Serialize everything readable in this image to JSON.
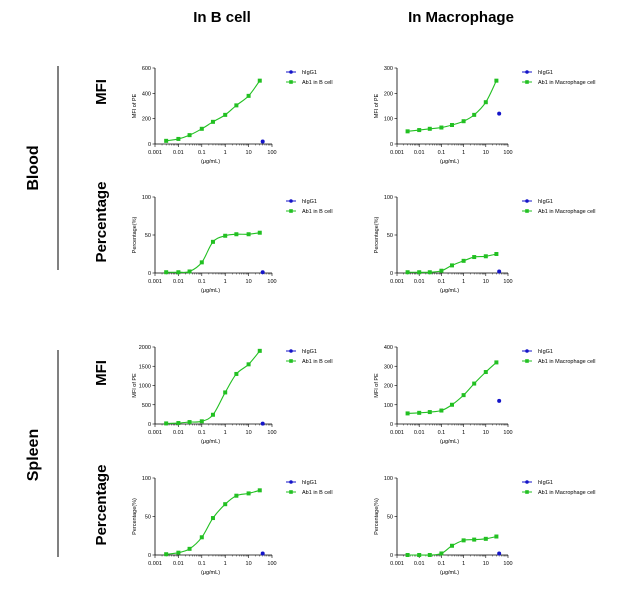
{
  "columns": [
    "In B cell",
    "In Macrophage"
  ],
  "row_groups": [
    "Blood",
    "Spleen"
  ],
  "row_types": [
    "MFI",
    "Percentage"
  ],
  "colors": {
    "igg": "#1414c8",
    "ab": "#22c022",
    "axis": "#000000",
    "line": "#000000"
  },
  "chart_data": [
    {
      "type": "scatter",
      "panel": "blood-mfi-bcell",
      "xlabel": "(μg/mL)",
      "ylabel": "MFI of PE",
      "xscale": "log",
      "xlim": [
        0.001,
        100
      ],
      "xticks": [
        0.001,
        0.01,
        0.1,
        1,
        10,
        100
      ],
      "xtick_labels": [
        "0.001",
        "0.01",
        "0.1",
        "1",
        "10",
        "100"
      ],
      "ylim": [
        0,
        600
      ],
      "yticks": [
        0,
        200,
        400,
        600
      ],
      "ytick_labels": [
        "0",
        "200",
        "400",
        "600"
      ],
      "series": [
        {
          "name": "hIgG1",
          "color": "#1414c8",
          "x": [
            40
          ],
          "y": [
            20
          ]
        },
        {
          "name": "Ab1 in B cell",
          "color": "#22c022",
          "fit": true,
          "x": [
            0.003,
            0.01,
            0.03,
            0.1,
            0.3,
            1,
            3,
            10,
            30
          ],
          "y": [
            25,
            40,
            70,
            120,
            175,
            230,
            305,
            380,
            500
          ]
        }
      ]
    },
    {
      "type": "scatter",
      "panel": "blood-mfi-macrophage",
      "xlabel": "(μg/mL)",
      "ylabel": "MFI of PE",
      "xscale": "log",
      "xlim": [
        0.001,
        100
      ],
      "xticks": [
        0.001,
        0.01,
        0.1,
        1,
        10,
        100
      ],
      "xtick_labels": [
        "0.001",
        "0.01",
        "0.1",
        "1",
        "10",
        "100"
      ],
      "ylim": [
        0,
        300
      ],
      "yticks": [
        0,
        100,
        200,
        300
      ],
      "ytick_labels": [
        "0",
        "100",
        "200",
        "300"
      ],
      "series": [
        {
          "name": "hIgG1",
          "color": "#1414c8",
          "x": [
            40
          ],
          "y": [
            120
          ]
        },
        {
          "name": "Ab1 in Macrophage cell",
          "color": "#22c022",
          "fit": true,
          "x": [
            0.003,
            0.01,
            0.03,
            0.1,
            0.3,
            1,
            3,
            10,
            30
          ],
          "y": [
            50,
            55,
            60,
            65,
            75,
            90,
            115,
            165,
            250
          ]
        }
      ]
    },
    {
      "type": "scatter",
      "panel": "blood-percentage-bcell",
      "xlabel": "(μg/mL)",
      "ylabel": "Percentage(%)",
      "xscale": "log",
      "xlim": [
        0.001,
        100
      ],
      "xticks": [
        0.001,
        0.01,
        0.1,
        1,
        10,
        100
      ],
      "xtick_labels": [
        "0.001",
        "0.01",
        "0.1",
        "1",
        "10",
        "100"
      ],
      "ylim": [
        0,
        100
      ],
      "yticks": [
        0,
        50,
        100
      ],
      "ytick_labels": [
        "0",
        "50",
        "100"
      ],
      "series": [
        {
          "name": "hIgG1",
          "color": "#1414c8",
          "x": [
            40
          ],
          "y": [
            1
          ]
        },
        {
          "name": "Ab1 in B cell",
          "color": "#22c022",
          "fit": true,
          "x": [
            0.003,
            0.01,
            0.03,
            0.1,
            0.3,
            1,
            3,
            10,
            30
          ],
          "y": [
            1,
            1,
            2,
            14,
            41,
            49,
            51,
            51,
            53
          ]
        }
      ]
    },
    {
      "type": "scatter",
      "panel": "blood-percentage-macrophage",
      "xlabel": "(μg/mL)",
      "ylabel": "Percentage(%)",
      "xscale": "log",
      "xlim": [
        0.001,
        100
      ],
      "xticks": [
        0.001,
        0.01,
        0.1,
        1,
        10,
        100
      ],
      "xtick_labels": [
        "0.001",
        "0.01",
        "0.1",
        "1",
        "10",
        "100"
      ],
      "ylim": [
        0,
        100
      ],
      "yticks": [
        0,
        50,
        100
      ],
      "ytick_labels": [
        "0",
        "50",
        "100"
      ],
      "series": [
        {
          "name": "hIgG1",
          "color": "#1414c8",
          "x": [
            40
          ],
          "y": [
            2
          ]
        },
        {
          "name": "Ab1 in Macrophage cell",
          "color": "#22c022",
          "fit": true,
          "x": [
            0.003,
            0.01,
            0.03,
            0.1,
            0.3,
            1,
            3,
            10,
            30
          ],
          "y": [
            1,
            1,
            1,
            3,
            10,
            16,
            21,
            22,
            25
          ]
        }
      ]
    },
    {
      "type": "scatter",
      "panel": "spleen-mfi-bcell",
      "xlabel": "(μg/mL)",
      "ylabel": "MFI of PE",
      "xscale": "log",
      "xlim": [
        0.001,
        100
      ],
      "xticks": [
        0.001,
        0.01,
        0.1,
        1,
        10,
        100
      ],
      "xtick_labels": [
        "0.001",
        "0.01",
        "0.1",
        "1",
        "10",
        "100"
      ],
      "ylim": [
        0,
        2000
      ],
      "yticks": [
        0,
        500,
        1000,
        1500,
        2000
      ],
      "ytick_labels": [
        "0",
        "500",
        "1000",
        "1500",
        "2000"
      ],
      "series": [
        {
          "name": "hIgG1",
          "color": "#1414c8",
          "x": [
            40
          ],
          "y": [
            10
          ]
        },
        {
          "name": "Ab1 in B cell",
          "color": "#22c022",
          "fit": true,
          "x": [
            0.003,
            0.01,
            0.03,
            0.1,
            0.3,
            1,
            3,
            10,
            30
          ],
          "y": [
            15,
            25,
            50,
            70,
            240,
            820,
            1300,
            1550,
            1900
          ]
        }
      ]
    },
    {
      "type": "scatter",
      "panel": "spleen-mfi-macrophage",
      "xlabel": "(μg/mL)",
      "ylabel": "MFI of PE",
      "xscale": "log",
      "xlim": [
        0.001,
        100
      ],
      "xticks": [
        0.001,
        0.01,
        0.1,
        1,
        10,
        100
      ],
      "xtick_labels": [
        "0.001",
        "0.01",
        "0.1",
        "1",
        "10",
        "100"
      ],
      "ylim": [
        0,
        400
      ],
      "yticks": [
        0,
        100,
        200,
        300,
        400
      ],
      "ytick_labels": [
        "0",
        "100",
        "200",
        "300",
        "400"
      ],
      "series": [
        {
          "name": "hIgG1",
          "color": "#1414c8",
          "x": [
            40
          ],
          "y": [
            120
          ]
        },
        {
          "name": "Ab1 in Macrophage cell",
          "color": "#22c022",
          "fit": true,
          "x": [
            0.003,
            0.01,
            0.03,
            0.1,
            0.3,
            1,
            3,
            10,
            30
          ],
          "y": [
            55,
            58,
            62,
            70,
            100,
            150,
            210,
            270,
            320
          ]
        }
      ]
    },
    {
      "type": "scatter",
      "panel": "spleen-percentage-bcell",
      "xlabel": "(μg/mL)",
      "ylabel": "Percentage(%)",
      "xscale": "log",
      "xlim": [
        0.001,
        100
      ],
      "xticks": [
        0.001,
        0.01,
        0.1,
        1,
        10,
        100
      ],
      "xtick_labels": [
        "0.001",
        "0.01",
        "0.1",
        "1",
        "10",
        "100"
      ],
      "ylim": [
        0,
        100
      ],
      "yticks": [
        0,
        50,
        100
      ],
      "ytick_labels": [
        "0",
        "50",
        "100"
      ],
      "series": [
        {
          "name": "hIgG1",
          "color": "#1414c8",
          "x": [
            40
          ],
          "y": [
            2
          ]
        },
        {
          "name": "Ab1 in B cell",
          "color": "#22c022",
          "fit": true,
          "x": [
            0.003,
            0.01,
            0.03,
            0.1,
            0.3,
            1,
            3,
            10,
            30
          ],
          "y": [
            1,
            3,
            8,
            23,
            48,
            66,
            77,
            80,
            84
          ]
        }
      ]
    },
    {
      "type": "scatter",
      "panel": "spleen-percentage-macrophage",
      "xlabel": "(μg/mL)",
      "ylabel": "Percentage(%)",
      "xscale": "log",
      "xlim": [
        0.001,
        100
      ],
      "xticks": [
        0.001,
        0.01,
        0.1,
        1,
        10,
        100
      ],
      "xtick_labels": [
        "0.001",
        "0.01",
        "0.1",
        "1",
        "10",
        "100"
      ],
      "ylim": [
        0,
        100
      ],
      "yticks": [
        0,
        50,
        100
      ],
      "ytick_labels": [
        "0",
        "50",
        "100"
      ],
      "series": [
        {
          "name": "hIgG1",
          "color": "#1414c8",
          "x": [
            40
          ],
          "y": [
            2
          ]
        },
        {
          "name": "Ab1 in Macrophage cell",
          "color": "#22c022",
          "fit": true,
          "x": [
            0.003,
            0.01,
            0.03,
            0.1,
            0.3,
            1,
            3,
            10,
            30
          ],
          "y": [
            0,
            0,
            0,
            2,
            12,
            19,
            20,
            21,
            24
          ]
        }
      ]
    }
  ]
}
